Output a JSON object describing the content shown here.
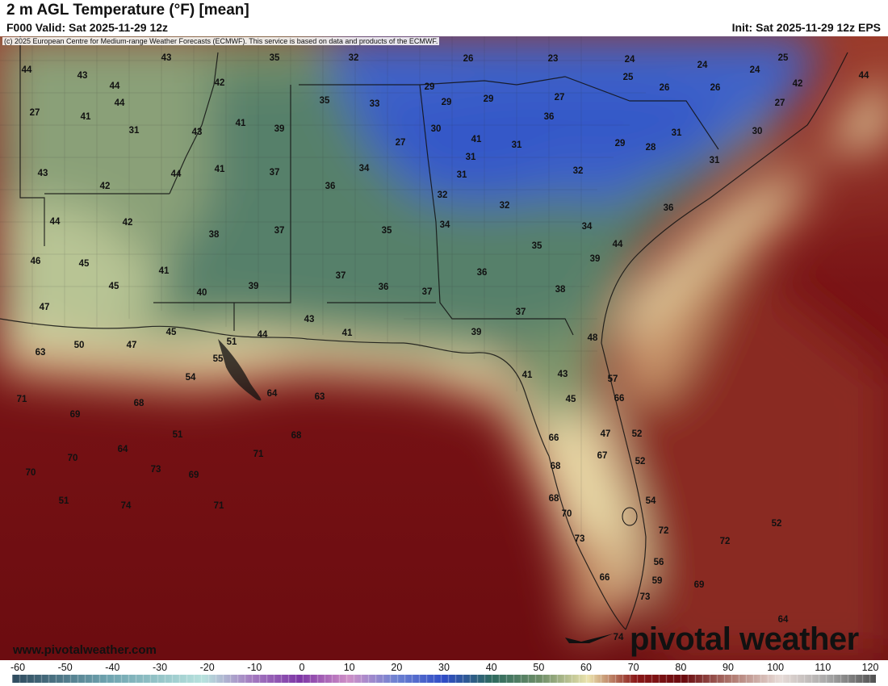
{
  "header": {
    "title": "2 m AGL Temperature (°F) [mean]",
    "valid": "F000 Valid: Sat 2025-11-29 12z",
    "init": "Init: Sat 2025-11-29 12z EPS"
  },
  "map": {
    "copyright": "(c) 2025 European Centre for Medium-range Weather Forecasts (ECMWF). This service is based on data and products of the ECMWF.",
    "watermark_site": "www.pivotalweather.com",
    "watermark_logo": "pivotal weather",
    "colors": {
      "cold_blue": "#3f63c8",
      "teal_green": "#3f6e63",
      "green": "#6c8c67",
      "pale_yellow": "#e8e0a8",
      "tan": "#c89a6c",
      "warm_red": "#8a1e1e",
      "deep_red": "#6c0c10"
    },
    "temperature_labels": [
      {
        "t": "44"
      },
      {
        "t": "43"
      },
      {
        "t": "35"
      },
      {
        "t": "32"
      },
      {
        "t": "26"
      },
      {
        "t": "23"
      },
      {
        "t": "24"
      },
      {
        "t": "24"
      },
      {
        "t": "25"
      },
      {
        "t": "43"
      },
      {
        "t": "44"
      },
      {
        "t": "42"
      },
      {
        "t": "44"
      },
      {
        "t": "25"
      },
      {
        "t": "24"
      },
      {
        "t": "29"
      },
      {
        "t": "44"
      },
      {
        "t": "42"
      },
      {
        "t": "29"
      },
      {
        "t": "26"
      },
      {
        "t": "26"
      },
      {
        "t": "35"
      },
      {
        "t": "33"
      },
      {
        "t": "29"
      },
      {
        "t": "27"
      },
      {
        "t": "27"
      },
      {
        "t": "27"
      },
      {
        "t": "41"
      },
      {
        "t": "41"
      },
      {
        "t": "39"
      },
      {
        "t": "36"
      },
      {
        "t": "30"
      },
      {
        "t": "31"
      },
      {
        "t": "43"
      },
      {
        "t": "41"
      },
      {
        "t": "31"
      },
      {
        "t": "30"
      },
      {
        "t": "27"
      },
      {
        "t": "29"
      },
      {
        "t": "31"
      },
      {
        "t": "28"
      },
      {
        "t": "31"
      },
      {
        "t": "31"
      },
      {
        "t": "43"
      },
      {
        "t": "44"
      },
      {
        "t": "41"
      },
      {
        "t": "37"
      },
      {
        "t": "34"
      },
      {
        "t": "31"
      },
      {
        "t": "32"
      },
      {
        "t": "42"
      },
      {
        "t": "36"
      },
      {
        "t": "32"
      },
      {
        "t": "32"
      },
      {
        "t": "36"
      },
      {
        "t": "44"
      },
      {
        "t": "42"
      },
      {
        "t": "38"
      },
      {
        "t": "37"
      },
      {
        "t": "35"
      },
      {
        "t": "34"
      },
      {
        "t": "34"
      },
      {
        "t": "35"
      },
      {
        "t": "44"
      },
      {
        "t": "46"
      },
      {
        "t": "45"
      },
      {
        "t": "39"
      },
      {
        "t": "41"
      },
      {
        "t": "37"
      },
      {
        "t": "36"
      },
      {
        "t": "45"
      },
      {
        "t": "40"
      },
      {
        "t": "39"
      },
      {
        "t": "36"
      },
      {
        "t": "37"
      },
      {
        "t": "38"
      },
      {
        "t": "47"
      },
      {
        "t": "37"
      },
      {
        "t": "43"
      },
      {
        "t": "45"
      },
      {
        "t": "51"
      },
      {
        "t": "44"
      },
      {
        "t": "41"
      },
      {
        "t": "39"
      },
      {
        "t": "48"
      },
      {
        "t": "63"
      },
      {
        "t": "50"
      },
      {
        "t": "47"
      },
      {
        "t": "55"
      },
      {
        "t": "54"
      },
      {
        "t": "41"
      },
      {
        "t": "43"
      },
      {
        "t": "57"
      },
      {
        "t": "71"
      },
      {
        "t": "68"
      },
      {
        "t": "64"
      },
      {
        "t": "63"
      },
      {
        "t": "45"
      },
      {
        "t": "66"
      },
      {
        "t": "69"
      },
      {
        "t": "51"
      },
      {
        "t": "68"
      },
      {
        "t": "66"
      },
      {
        "t": "47"
      },
      {
        "t": "52"
      },
      {
        "t": "64"
      },
      {
        "t": "70"
      },
      {
        "t": "71"
      },
      {
        "t": "67"
      },
      {
        "t": "52"
      },
      {
        "t": "70"
      },
      {
        "t": "73"
      },
      {
        "t": "69"
      },
      {
        "t": "68"
      },
      {
        "t": "51"
      },
      {
        "t": "74"
      },
      {
        "t": "71"
      },
      {
        "t": "68"
      },
      {
        "t": "54"
      },
      {
        "t": "70"
      },
      {
        "t": "52"
      },
      {
        "t": "72"
      },
      {
        "t": "72"
      },
      {
        "t": "73"
      },
      {
        "t": "56"
      },
      {
        "t": "66"
      },
      {
        "t": "59"
      },
      {
        "t": "69"
      },
      {
        "t": "73"
      },
      {
        "t": "64"
      },
      {
        "t": "74"
      },
      {
        "t": "72"
      }
    ]
  },
  "colorbar": {
    "unit": "°F",
    "ticks": [
      "-60",
      "-50",
      "-40",
      "-30",
      "-20",
      "-10",
      "0",
      "10",
      "20",
      "30",
      "40",
      "50",
      "60",
      "70",
      "80",
      "90",
      "100",
      "110",
      "120"
    ],
    "stops": [
      {
        "value": -60,
        "color": "#2e4a5e"
      },
      {
        "value": -40,
        "color": "#6fa4b0"
      },
      {
        "value": -20,
        "color": "#b8e2de"
      },
      {
        "value": -10,
        "color": "#a47ac0"
      },
      {
        "value": 0,
        "color": "#7e36a6"
      },
      {
        "value": 10,
        "color": "#d090c8"
      },
      {
        "value": 20,
        "color": "#6e82d2"
      },
      {
        "value": 30,
        "color": "#2f4cc6"
      },
      {
        "value": 40,
        "color": "#2e6a5e"
      },
      {
        "value": 50,
        "color": "#6e8e68"
      },
      {
        "value": 60,
        "color": "#ece4ae"
      },
      {
        "value": 70,
        "color": "#8a1818"
      },
      {
        "value": 80,
        "color": "#6a0a0e"
      },
      {
        "value": 90,
        "color": "#b07a70"
      },
      {
        "value": 100,
        "color": "#e8dcd8"
      },
      {
        "value": 110,
        "color": "#a8a8a8"
      },
      {
        "value": 120,
        "color": "#505050"
      }
    ]
  }
}
